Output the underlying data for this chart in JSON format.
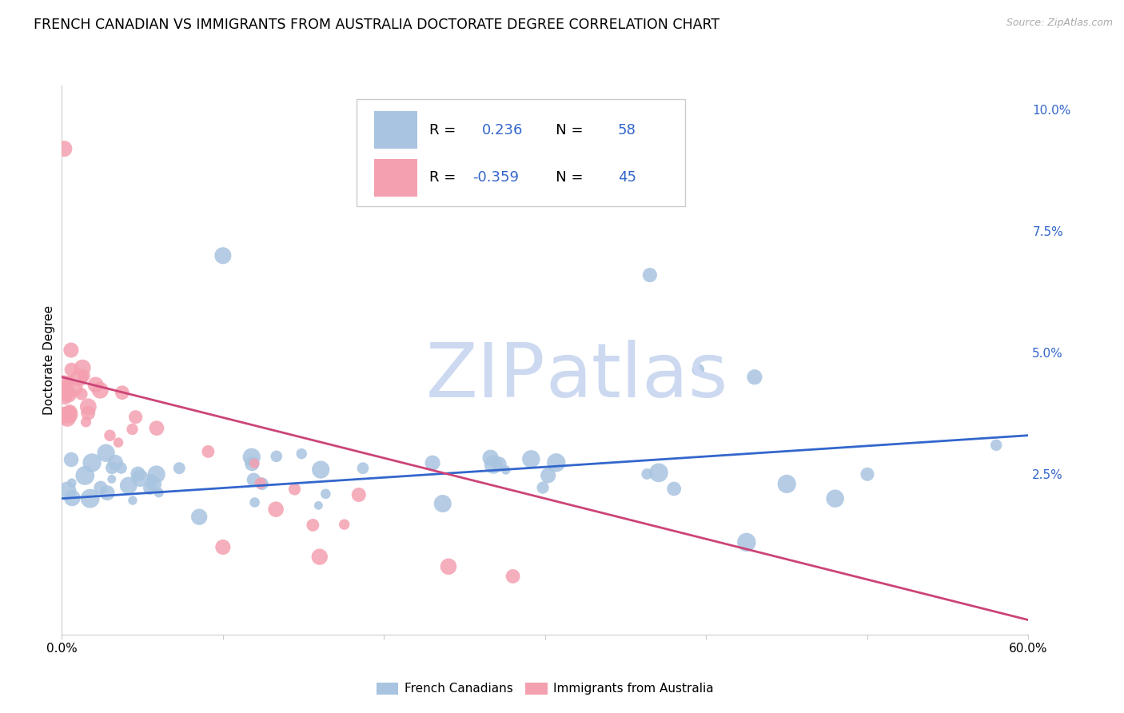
{
  "title": "FRENCH CANADIAN VS IMMIGRANTS FROM AUSTRALIA DOCTORATE DEGREE CORRELATION CHART",
  "source": "Source: ZipAtlas.com",
  "ylabel": "Doctorate Degree",
  "xmin": 0.0,
  "xmax": 60.0,
  "ymin": -0.8,
  "ymax": 10.5,
  "blue_label": "French Canadians",
  "pink_label": "Immigrants from Australia",
  "blue_R": 0.236,
  "blue_N": 58,
  "pink_R": -0.359,
  "pink_N": 45,
  "blue_color": "#a8c4e0",
  "blue_line_color": "#3366cc",
  "pink_color": "#f4a0b0",
  "pink_line_color": "#cc4477",
  "watermark_color": "#ccd9f0",
  "grid_color": "#dddddd",
  "title_fontsize": 12.5,
  "axis_label_fontsize": 11,
  "tick_fontsize": 11,
  "legend_fontsize": 13,
  "blue_line_y0": 2.0,
  "blue_line_y1": 3.3,
  "pink_line_y0": 4.5,
  "pink_line_y1": -0.5
}
